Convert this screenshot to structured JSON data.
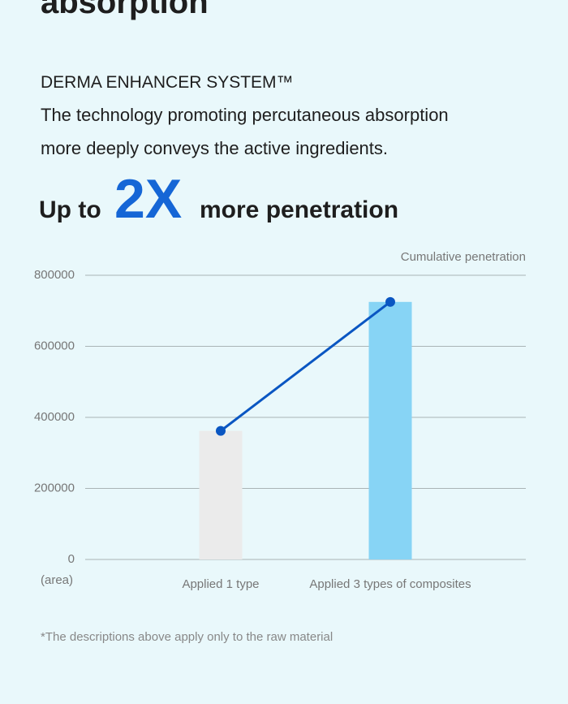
{
  "heading": "absorption",
  "subheading": "DERMA ENHANCER SYSTEM™",
  "description": [
    "The technology promoting percutaneous absorption",
    "more deeply conveys the active ingredients."
  ],
  "headline": {
    "prefix": "Up to",
    "highlight": "2X",
    "suffix": "more penetration"
  },
  "chart_data": {
    "type": "bar",
    "ylabel": "Cumulative penetration",
    "yunit": "(area)",
    "categories": [
      "Applied 1 type",
      "Applied 3 types of composites"
    ],
    "values": [
      362000,
      725000
    ],
    "colors": [
      "#ebebeb",
      "#87d4f5"
    ],
    "line": {
      "color": "#0a56c2"
    },
    "ylim": [
      0,
      800000
    ],
    "yticks": [
      0,
      200000,
      400000,
      600000,
      800000
    ],
    "grid": true
  },
  "footnote": "*The descriptions above apply only to the raw material"
}
